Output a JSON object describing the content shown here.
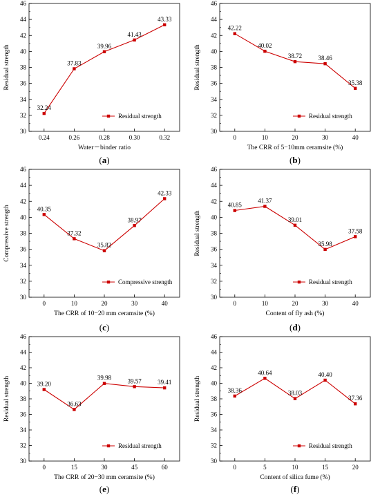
{
  "colors": {
    "series": "#cc0000",
    "axis": "#000000"
  },
  "chart_data": [
    {
      "id": "a",
      "type": "line",
      "panel_label": "(a)",
      "panel_letter": "a",
      "x": [
        0.24,
        0.26,
        0.28,
        0.3,
        0.32
      ],
      "x_ticks": [
        "0.24",
        "0.26",
        "0.28",
        "0.30",
        "0.32"
      ],
      "xlim": [
        0.23,
        0.33
      ],
      "ylim": [
        30,
        46
      ],
      "y_ticks": [
        30,
        32,
        34,
        36,
        38,
        40,
        42,
        44,
        46
      ],
      "xlabel": "Water－binder ratio",
      "ylabel": "Residual strength",
      "series": [
        {
          "name": "Residual strength",
          "values": [
            32.24,
            37.83,
            39.96,
            41.43,
            43.33
          ],
          "labels": [
            "32.24",
            "37.83",
            "39.96",
            "41.43",
            "43.33"
          ]
        }
      ],
      "legend": "bottom-right",
      "grid": false
    },
    {
      "id": "b",
      "type": "line",
      "panel_label": "(b)",
      "panel_letter": "b",
      "x": [
        0,
        10,
        20,
        30,
        40
      ],
      "x_ticks": [
        "0",
        "10",
        "20",
        "30",
        "40"
      ],
      "xlim": [
        -5,
        45
      ],
      "ylim": [
        30,
        46
      ],
      "y_ticks": [
        30,
        32,
        34,
        36,
        38,
        40,
        42,
        44,
        46
      ],
      "xlabel": "The CRR of 5−10mm ceramsite (%)",
      "ylabel": "Residual strength",
      "series": [
        {
          "name": "Residual strength",
          "values": [
            42.22,
            40.02,
            38.72,
            38.46,
            35.38
          ],
          "labels": [
            "42.22",
            "40.02",
            "38.72",
            "38.46",
            "35.38"
          ]
        }
      ],
      "legend": "bottom-right",
      "grid": false
    },
    {
      "id": "c",
      "type": "line",
      "panel_label": "(c)",
      "panel_letter": "c",
      "x": [
        0,
        10,
        20,
        30,
        40
      ],
      "x_ticks": [
        "0",
        "10",
        "20",
        "30",
        "40"
      ],
      "xlim": [
        -5,
        45
      ],
      "ylim": [
        30,
        46
      ],
      "y_ticks": [
        30,
        32,
        34,
        36,
        38,
        40,
        42,
        44,
        46
      ],
      "xlabel": "The CRR of 10−20 mm ceramsite (%)",
      "ylabel": "Compressive strength",
      "series": [
        {
          "name": "Compressive strength",
          "values": [
            40.35,
            37.32,
            35.82,
            38.97,
            42.33
          ],
          "labels": [
            "40.35",
            "37.32",
            "35.82",
            "38.97",
            "42.33"
          ]
        }
      ],
      "legend": "bottom-right",
      "grid": false
    },
    {
      "id": "d",
      "type": "line",
      "panel_label": "(d)",
      "panel_letter": "d",
      "x": [
        0,
        10,
        20,
        30,
        40
      ],
      "x_ticks": [
        "0",
        "10",
        "20",
        "30",
        "40"
      ],
      "xlim": [
        -5,
        45
      ],
      "ylim": [
        30,
        46
      ],
      "y_ticks": [
        30,
        32,
        34,
        36,
        38,
        40,
        42,
        44,
        46
      ],
      "xlabel": "Content of fly ash (%)",
      "ylabel": "Residual strength",
      "series": [
        {
          "name": "Residual strength",
          "values": [
            40.85,
            41.37,
            39.01,
            35.98,
            37.58
          ],
          "labels": [
            "40.85",
            "41.37",
            "39.01",
            "35.98",
            "37.58"
          ]
        }
      ],
      "legend": "bottom-right",
      "grid": false
    },
    {
      "id": "e",
      "type": "line",
      "panel_label": "(e)",
      "panel_letter": "e",
      "x": [
        0,
        15,
        30,
        45,
        60
      ],
      "x_ticks": [
        "0",
        "15",
        "30",
        "45",
        "60"
      ],
      "xlim": [
        -7.5,
        67.5
      ],
      "ylim": [
        30,
        46
      ],
      "y_ticks": [
        30,
        32,
        34,
        36,
        38,
        40,
        42,
        44,
        46
      ],
      "xlabel": "The CRR of 20−30 mm ceramsite (%)",
      "ylabel": "Residual strength",
      "series": [
        {
          "name": "Residual strength",
          "values": [
            39.2,
            36.63,
            39.98,
            39.57,
            39.41
          ],
          "labels": [
            "39.20",
            "36.63",
            "39.98",
            "39.57",
            "39.41"
          ]
        }
      ],
      "legend": "bottom-right",
      "grid": false
    },
    {
      "id": "f",
      "type": "line",
      "panel_label": "(f)",
      "panel_letter": "f",
      "x": [
        0,
        5,
        10,
        15,
        20
      ],
      "x_ticks": [
        "0",
        "5",
        "10",
        "15",
        "20"
      ],
      "xlim": [
        -2.5,
        22.5
      ],
      "ylim": [
        30,
        46
      ],
      "y_ticks": [
        30,
        32,
        34,
        36,
        38,
        40,
        42,
        44,
        46
      ],
      "xlabel": "Content of  silica fume (%)",
      "ylabel": "Residual strength",
      "series": [
        {
          "name": "Residual strength",
          "values": [
            38.36,
            40.64,
            38.03,
            40.4,
            37.36
          ],
          "labels": [
            "38.36",
            "40.64",
            "38.03",
            "40.40",
            "37.36"
          ]
        }
      ],
      "legend": "bottom-right",
      "grid": false
    }
  ]
}
